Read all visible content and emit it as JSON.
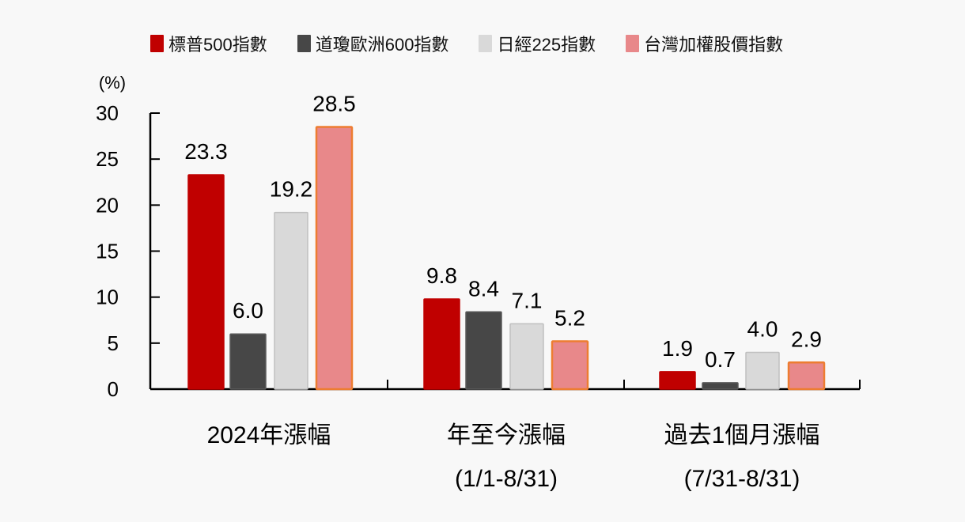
{
  "chart_data": {
    "type": "bar",
    "title": "",
    "xlabel": "",
    "ylabel": "(%)",
    "ylim": [
      0,
      30
    ],
    "yticks": [
      0,
      5,
      10,
      15,
      20,
      25,
      30
    ],
    "grid": false,
    "legend_position": "top",
    "categories": [
      "2024年漲幅",
      "年至今漲幅 (1/1-8/31)",
      "過去1個月漲幅 (7/31-8/31)"
    ],
    "category_lines": [
      [
        "2024年漲幅"
      ],
      [
        "年至今漲幅",
        "(1/1-8/31)"
      ],
      [
        "過去1個月漲幅",
        "(7/31-8/31)"
      ]
    ],
    "series": [
      {
        "name": "標普500指數",
        "color": "#c00000",
        "border": "#c00000",
        "values": [
          23.3,
          9.8,
          1.9
        ]
      },
      {
        "name": "道瓊歐洲600指數",
        "color": "#474747",
        "border": "#5a5a5a",
        "values": [
          6.0,
          8.4,
          0.7
        ]
      },
      {
        "name": "日經225指數",
        "color": "#d9d9d9",
        "border": "#bfbfbf",
        "values": [
          19.2,
          7.1,
          4.0
        ]
      },
      {
        "name": "台灣加權股價指數",
        "color": "#e8888a",
        "border": "#ed7d31",
        "values": [
          28.5,
          5.2,
          2.9
        ]
      }
    ],
    "data_labels": [
      [
        "23.3",
        "6.0",
        "19.2",
        "28.5"
      ],
      [
        "9.8",
        "8.4",
        "7.1",
        "5.2"
      ],
      [
        "1.9",
        "0.7",
        "4.0",
        "2.9"
      ]
    ]
  },
  "legend": {
    "items": [
      {
        "label": "標普500指數",
        "color": "#c00000"
      },
      {
        "label": "道瓊歐洲600指數",
        "color": "#474747"
      },
      {
        "label": "日經225指數",
        "color": "#d9d9d9"
      },
      {
        "label": "台灣加權股價指數",
        "color": "#e8888a"
      }
    ]
  },
  "axis": {
    "unit": "(%)",
    "ticks": [
      "0",
      "5",
      "10",
      "15",
      "20",
      "25",
      "30"
    ]
  }
}
